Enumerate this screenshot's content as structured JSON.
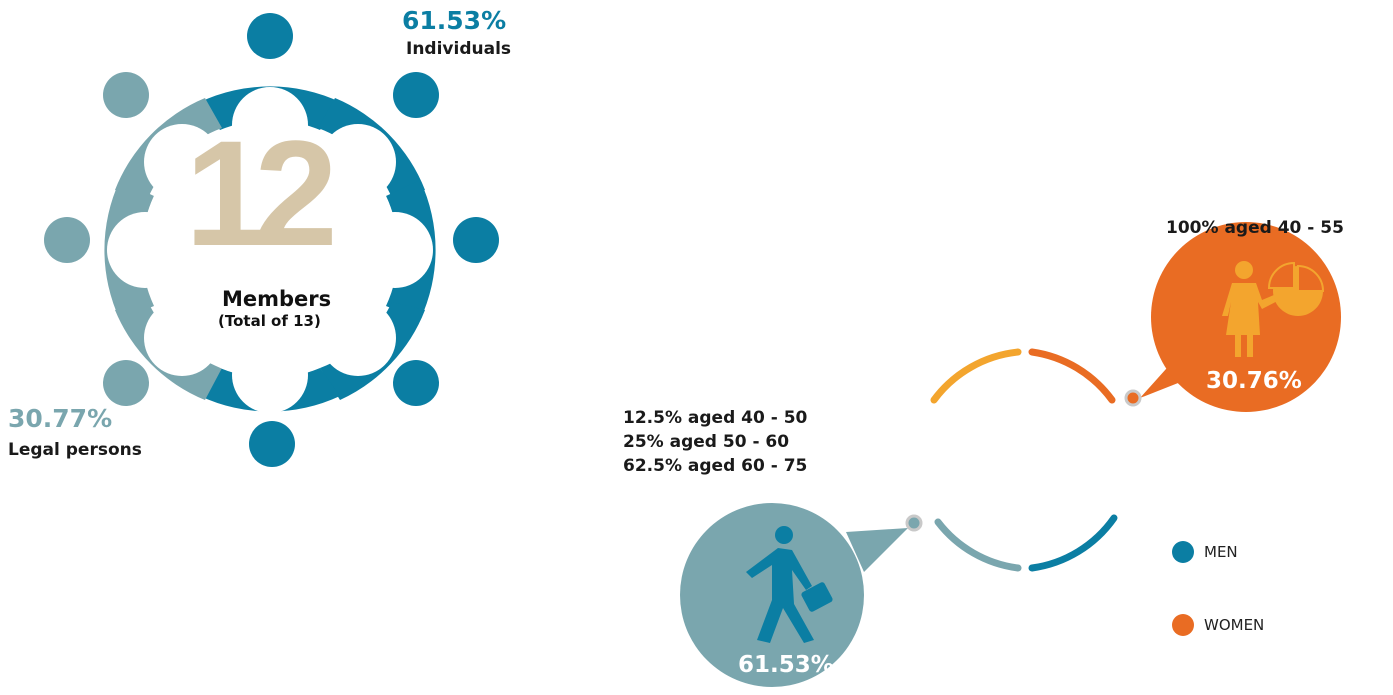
{
  "members": {
    "count": "12",
    "title": "Members",
    "subtitle": "(Total of 13)",
    "individuals_pct": "61.53%",
    "individuals_label": "Individuals",
    "legal_pct": "30.77%",
    "legal_label": "Legal persons"
  },
  "gender": {
    "women_ages": "100% aged 40 - 55",
    "women_pct": "30.76%",
    "men_ages": [
      "12.5% aged 40 - 50",
      "25% aged 50 - 60",
      "62.5% aged 60 - 75"
    ],
    "men_pct": "61.53%"
  },
  "legend": {
    "men_label": "MEN",
    "women_label": "WOMEN"
  },
  "colors": {
    "blue": "#0b7ea3",
    "teal": "#7aa6ae",
    "orange": "#e96c23",
    "amber": "#f3a52e",
    "beige": "#d6c6a8"
  },
  "icons": [
    "person-icon",
    "businesswoman-presentation-icon",
    "walking-man-briefcase-icon",
    "pie-chart-icon"
  ]
}
